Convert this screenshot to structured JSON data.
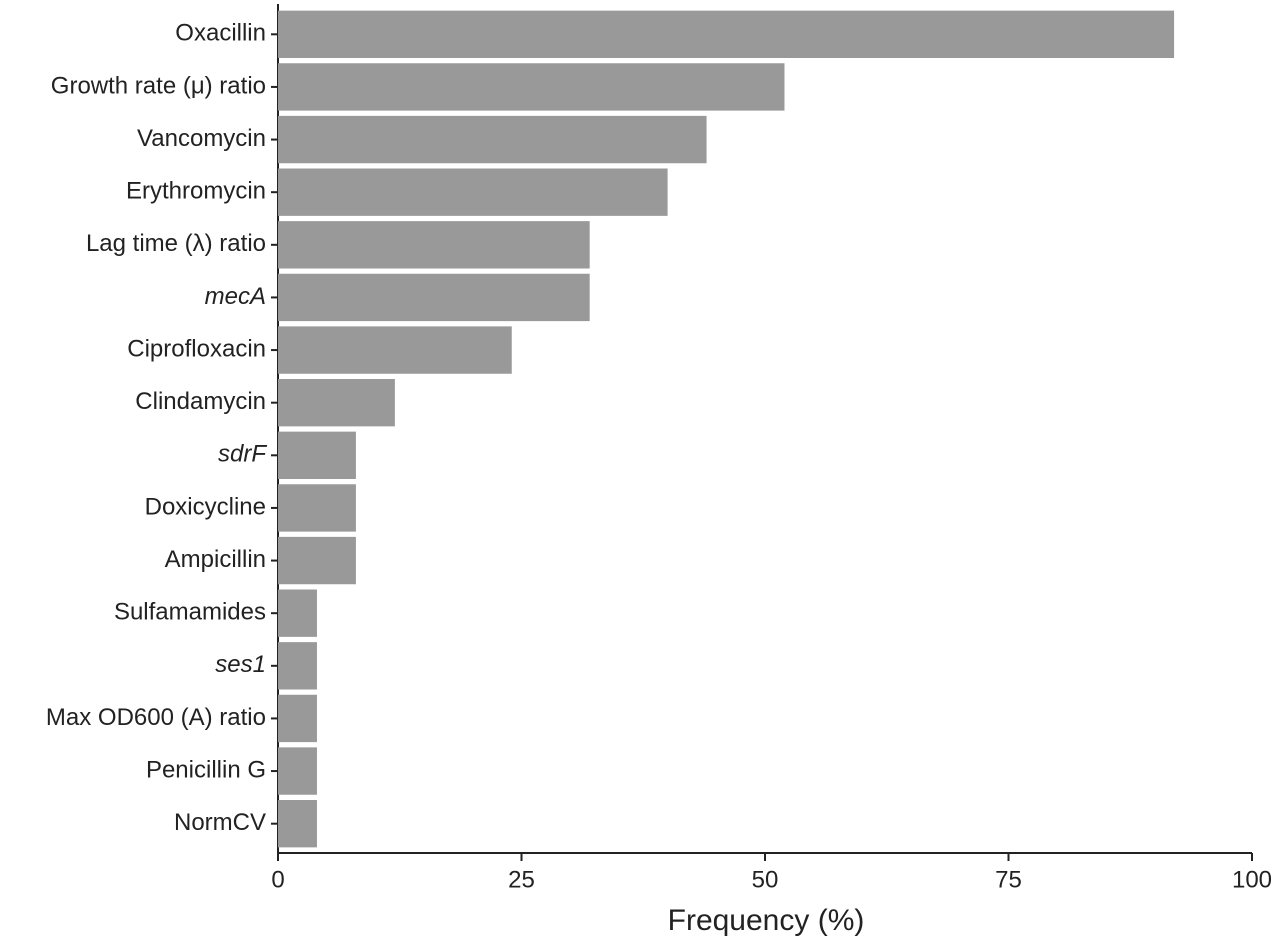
{
  "chart_data": {
    "type": "hbar",
    "xlabel": "Frequency (%)",
    "categories": [
      "Oxacillin",
      "Growth rate (μ) ratio",
      "Vancomycin",
      "Erythromycin",
      "Lag time (λ) ratio",
      "mecA",
      "Ciprofloxacin",
      "Clindamycin",
      "sdrF",
      "Doxicycline",
      "Ampicillin",
      "Sulfamamides",
      "ses1",
      "Max OD600 (A) ratio",
      "Penicillin G",
      "NormCV"
    ],
    "values": [
      92,
      52,
      44,
      40,
      32,
      32,
      24,
      12,
      8,
      8,
      8,
      4,
      4,
      4,
      4,
      4
    ],
    "color": "#999999",
    "xlim": [
      0,
      100
    ],
    "xticks": [
      0,
      25,
      50,
      75,
      100
    ],
    "grid": false
  }
}
